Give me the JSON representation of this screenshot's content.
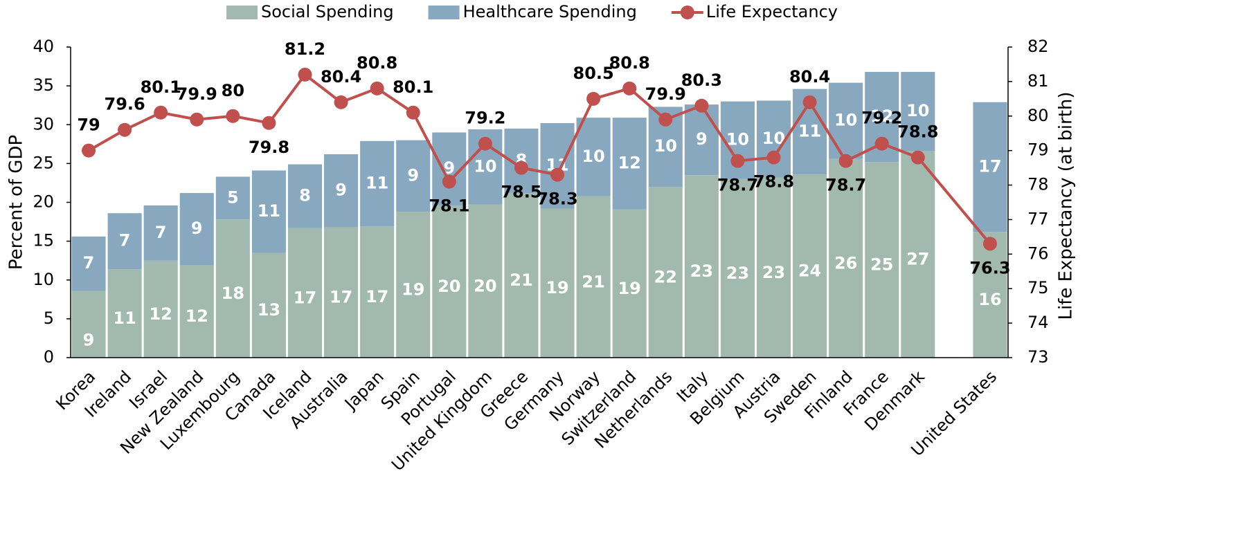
{
  "chart_data": {
    "type": "bar",
    "categories": [
      "Korea",
      "Ireland",
      "Israel",
      "New Zealand",
      "Luxembourg",
      "Canada",
      "Iceland",
      "Australia",
      "Japan",
      "Spain",
      "Portugal",
      "United Kingdom",
      "Greece",
      "Germany",
      "Norway",
      "Switzerland",
      "Netherlands",
      "Italy",
      "Belgium",
      "Austria",
      "Sweden",
      "Finland",
      "France",
      "Denmark",
      null,
      "United States"
    ],
    "series": [
      {
        "name": "Social Spending",
        "color": "#a2b9b0",
        "type": "bar",
        "values": [
          8.6,
          11.4,
          12.5,
          11.9,
          17.8,
          13.5,
          16.7,
          16.8,
          16.9,
          18.8,
          19.6,
          19.7,
          21.2,
          19.2,
          20.8,
          19.1,
          22.0,
          23.5,
          23.0,
          23.2,
          23.6,
          25.6,
          25.2,
          26.6,
          null,
          16.2
        ],
        "value_labels": [
          "9",
          "11",
          "12",
          "12",
          "18",
          "13",
          "17",
          "17",
          "17",
          "19",
          "20",
          "20",
          "21",
          "19",
          "21",
          "19",
          "22",
          "23",
          "23",
          "23",
          "24",
          "26",
          "25",
          "27",
          null,
          "16"
        ]
      },
      {
        "name": "Healthcare Spending",
        "color": "#87a8bf",
        "type": "bar",
        "values": [
          7.0,
          7.2,
          7.1,
          9.3,
          5.5,
          10.6,
          8.2,
          9.4,
          11.0,
          9.2,
          9.4,
          9.7,
          8.3,
          11.0,
          10.1,
          11.8,
          10.3,
          9.1,
          10.0,
          9.9,
          11.0,
          9.8,
          11.6,
          10.2,
          null,
          16.7
        ],
        "value_labels": [
          "7",
          "7",
          "7",
          "9",
          "5",
          "11",
          "8",
          "9",
          "11",
          "9",
          "9",
          "10",
          "8",
          "11",
          "10",
          "12",
          "10",
          "9",
          "10",
          "10",
          "11",
          "10",
          "12",
          "10",
          null,
          "17"
        ]
      },
      {
        "name": "Life Expectancy",
        "color": "#c0504d",
        "type": "line",
        "axis": "y2",
        "values": [
          79,
          79.6,
          80.1,
          79.9,
          80,
          79.8,
          81.2,
          80.4,
          80.8,
          80.1,
          78.1,
          79.2,
          78.5,
          78.3,
          80.5,
          80.8,
          79.9,
          80.3,
          78.7,
          78.8,
          80.4,
          78.7,
          79.2,
          78.8,
          null,
          76.3
        ]
      }
    ],
    "y_label": "Percent of GDP",
    "y2_label": "Life Expectancy (at birth)",
    "ylim": [
      0,
      40
    ],
    "yticks": [
      0,
      5,
      10,
      15,
      20,
      25,
      30,
      35,
      40
    ],
    "y2lim": [
      73,
      82
    ],
    "y2ticks": [
      73,
      74,
      75,
      76,
      77,
      78,
      79,
      80,
      81,
      82
    ],
    "stacked": true,
    "legend": "top"
  }
}
